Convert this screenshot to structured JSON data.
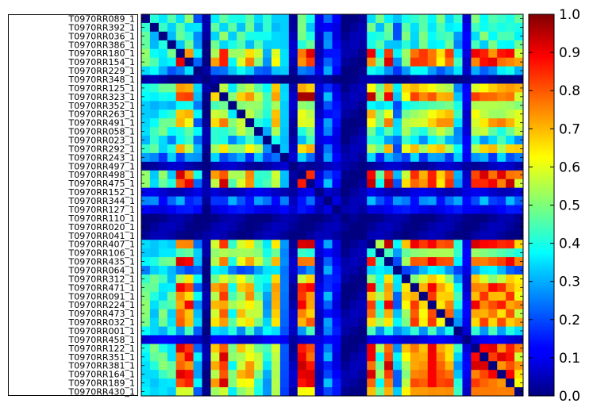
{
  "chart_data": {
    "type": "heatmap",
    "row_labels": [
      "T0970RR089_1",
      "T0970RR392_1",
      "T0970RR036_1",
      "T0970RR386_1",
      "T0970RR180_1",
      "T0970RR154_1",
      "T0970RR229_1",
      "T0970RR348_1",
      "T0970RR125_1",
      "T0970RR323_1",
      "T0970RR352_1",
      "T0970RR263_1",
      "T0970RR491_1",
      "T0970RR058_1",
      "T0970RR023_1",
      "T0970RR292_1",
      "T0970RR243_1",
      "T0970RR497_1",
      "T0970RR498_1",
      "T0970RR475_1",
      "T0970RR152_1",
      "T0970RR344_1",
      "T0970RR127_1",
      "T0970RR110_1",
      "T0970RR020_1",
      "T0970RR041_1",
      "T0970RR407_1",
      "T0970RR106_1",
      "T0970RR435_1",
      "T0970RR064_1",
      "T0970RR312_1",
      "T0970RR471_1",
      "T0970RR091_1",
      "T0970RR224_1",
      "T0970RR473_1",
      "T0970RR032_1",
      "T0970RR001_1",
      "T0970RR458_1",
      "T0970RR122_1",
      "T0970RR351_1",
      "T0970RR381_1",
      "T0970RR164_1",
      "T0970RR189_1",
      "T0970RR430_1"
    ],
    "colorbar": {
      "vmin": 0.0,
      "vmax": 1.0,
      "ticks": [
        "0.0",
        "0.1",
        "0.2",
        "0.3",
        "0.4",
        "0.5",
        "0.6",
        "0.7",
        "0.8",
        "0.9",
        "1.0"
      ],
      "colormap": "jet"
    },
    "group_levels": [
      0.42,
      0.4,
      0.42,
      0.4,
      0.8,
      0.8,
      0.3,
      0.02,
      0.62,
      0.85,
      0.45,
      0.6,
      0.65,
      0.48,
      0.35,
      0.62,
      0.25,
      0.05,
      0.85,
      0.85,
      0.08,
      0.22,
      0.12,
      0.02,
      0.03,
      0.03,
      0.85,
      0.45,
      0.82,
      0.28,
      0.58,
      0.78,
      0.72,
      0.78,
      0.7,
      0.72,
      0.35,
      0.1,
      0.85,
      0.82,
      0.82,
      0.8,
      0.82,
      0.65
    ]
  }
}
